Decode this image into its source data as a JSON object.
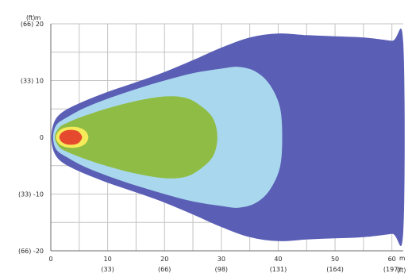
{
  "chart_data": {
    "type": "area",
    "title": "",
    "grid": true,
    "xlim": [
      0,
      62
    ],
    "ylim": [
      -20,
      20
    ],
    "x_unit_label": "m",
    "x_unit_label_secondary": "(ft)",
    "y_unit_label": "m",
    "y_unit_label_secondary": "(ft)",
    "x_ticks": [
      {
        "value": 0,
        "label": "0",
        "label_secondary": ""
      },
      {
        "value": 10,
        "label": "10",
        "label_secondary": "(33)"
      },
      {
        "value": 20,
        "label": "20",
        "label_secondary": "(66)"
      },
      {
        "value": 30,
        "label": "30",
        "label_secondary": "(98)"
      },
      {
        "value": 40,
        "label": "40",
        "label_secondary": "(131)"
      },
      {
        "value": 50,
        "label": "50",
        "label_secondary": "(164)"
      },
      {
        "value": 60,
        "label": "60",
        "label_secondary": "(197)"
      }
    ],
    "y_ticks": [
      {
        "value": 20,
        "label": "(66) 20"
      },
      {
        "value": 10,
        "label": "(33) 10"
      },
      {
        "value": 0,
        "label": "0"
      },
      {
        "value": -10,
        "label": "(33) -10"
      },
      {
        "value": -20,
        "label": "(66) -20"
      }
    ],
    "series": [
      {
        "color": "#5a5fb5",
        "outline": [
          [
            0.1,
            0
          ],
          [
            0.6,
            2.7
          ],
          [
            2,
            4.4
          ],
          [
            5,
            6
          ],
          [
            10,
            8
          ],
          [
            15,
            9.7
          ],
          [
            20,
            11.5
          ],
          [
            25,
            13.6
          ],
          [
            30,
            15.8
          ],
          [
            35,
            17.6
          ],
          [
            40,
            18.3
          ],
          [
            45,
            18.0
          ],
          [
            50,
            17.8
          ],
          [
            55,
            17.6
          ],
          [
            60,
            17.0
          ],
          [
            62,
            16.6
          ],
          [
            62,
            -16.6
          ],
          [
            60,
            -17.0
          ],
          [
            55,
            -17.6
          ],
          [
            50,
            -17.8
          ],
          [
            45,
            -18.0
          ],
          [
            40,
            -18.3
          ],
          [
            35,
            -17.6
          ],
          [
            30,
            -15.8
          ],
          [
            25,
            -13.6
          ],
          [
            20,
            -11.5
          ],
          [
            15,
            -9.7
          ],
          [
            10,
            -8
          ],
          [
            5,
            -6
          ],
          [
            2,
            -4.4
          ],
          [
            0.6,
            -2.7
          ]
        ]
      },
      {
        "color": "#a9d8ee",
        "outline": [
          [
            0.4,
            0
          ],
          [
            1,
            2.2
          ],
          [
            3,
            3.6
          ],
          [
            6,
            5.2
          ],
          [
            10,
            6.8
          ],
          [
            15,
            8.5
          ],
          [
            20,
            10
          ],
          [
            25,
            11.3
          ],
          [
            30,
            12.1
          ],
          [
            33,
            12.4
          ],
          [
            36,
            11.6
          ],
          [
            38.5,
            9.3
          ],
          [
            40.3,
            5.3
          ],
          [
            40.7,
            0
          ],
          [
            40.3,
            -5.3
          ],
          [
            38.5,
            -9.3
          ],
          [
            36,
            -11.6
          ],
          [
            33,
            -12.4
          ],
          [
            30,
            -12.1
          ],
          [
            25,
            -11.3
          ],
          [
            20,
            -10
          ],
          [
            15,
            -8.5
          ],
          [
            10,
            -6.8
          ],
          [
            6,
            -5.2
          ],
          [
            3,
            -3.6
          ],
          [
            1,
            -2.2
          ]
        ]
      },
      {
        "color": "#8fbc44",
        "outline": [
          [
            0.7,
            0
          ],
          [
            1.5,
            1.7
          ],
          [
            3,
            2.6
          ],
          [
            6,
            3.8
          ],
          [
            10,
            5.1
          ],
          [
            15,
            6.4
          ],
          [
            20,
            7.2
          ],
          [
            23.5,
            7.0
          ],
          [
            26,
            5.8
          ],
          [
            28.5,
            3.4
          ],
          [
            29.3,
            0
          ],
          [
            28.5,
            -3.4
          ],
          [
            26,
            -5.8
          ],
          [
            23.5,
            -7.0
          ],
          [
            20,
            -7.2
          ],
          [
            15,
            -6.4
          ],
          [
            10,
            -5.1
          ],
          [
            6,
            -3.8
          ],
          [
            3,
            -2.6
          ],
          [
            1.5,
            -1.7
          ]
        ]
      },
      {
        "color": "#f5ea5a",
        "outline": [
          [
            0.9,
            0
          ],
          [
            1.4,
            1.1
          ],
          [
            2.5,
            1.7
          ],
          [
            4,
            1.85
          ],
          [
            5.3,
            1.6
          ],
          [
            6.2,
            1.0
          ],
          [
            6.6,
            0
          ],
          [
            6.2,
            -1.0
          ],
          [
            5.3,
            -1.6
          ],
          [
            4,
            -1.85
          ],
          [
            2.5,
            -1.7
          ],
          [
            1.4,
            -1.1
          ]
        ]
      },
      {
        "color": "#e64a2e",
        "outline": [
          [
            1.5,
            0
          ],
          [
            1.9,
            0.8
          ],
          [
            2.8,
            1.25
          ],
          [
            3.9,
            1.3
          ],
          [
            4.8,
            1.05
          ],
          [
            5.3,
            0.5
          ],
          [
            5.5,
            0
          ],
          [
            5.3,
            -0.5
          ],
          [
            4.8,
            -1.05
          ],
          [
            3.9,
            -1.3
          ],
          [
            2.8,
            -1.25
          ],
          [
            1.9,
            -0.8
          ]
        ]
      }
    ]
  }
}
